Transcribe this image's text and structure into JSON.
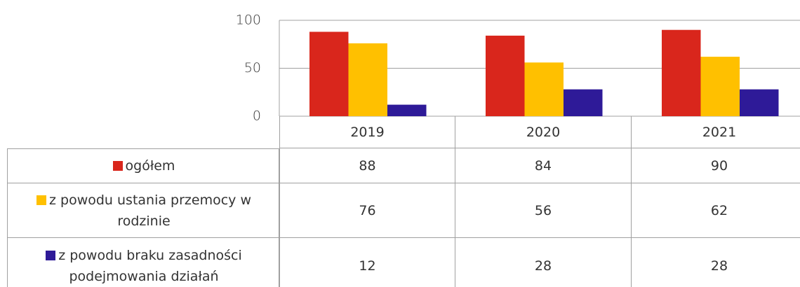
{
  "chart_data": {
    "type": "bar",
    "categories": [
      "2019",
      "2020",
      "2021"
    ],
    "series": [
      {
        "name": "ogółem",
        "color": "#d9261c",
        "values": [
          88,
          84,
          90
        ]
      },
      {
        "name": "z powodu ustania przemocy w rodzinie",
        "color": "#ffc000",
        "values": [
          76,
          56,
          62
        ]
      },
      {
        "name": "z powodu braku zasadności podejmowania działań",
        "color": "#2e1a98",
        "values": [
          12,
          28,
          28
        ]
      }
    ],
    "ylim": [
      0,
      100
    ],
    "yticks": [
      0,
      50,
      100
    ],
    "grid": true
  }
}
